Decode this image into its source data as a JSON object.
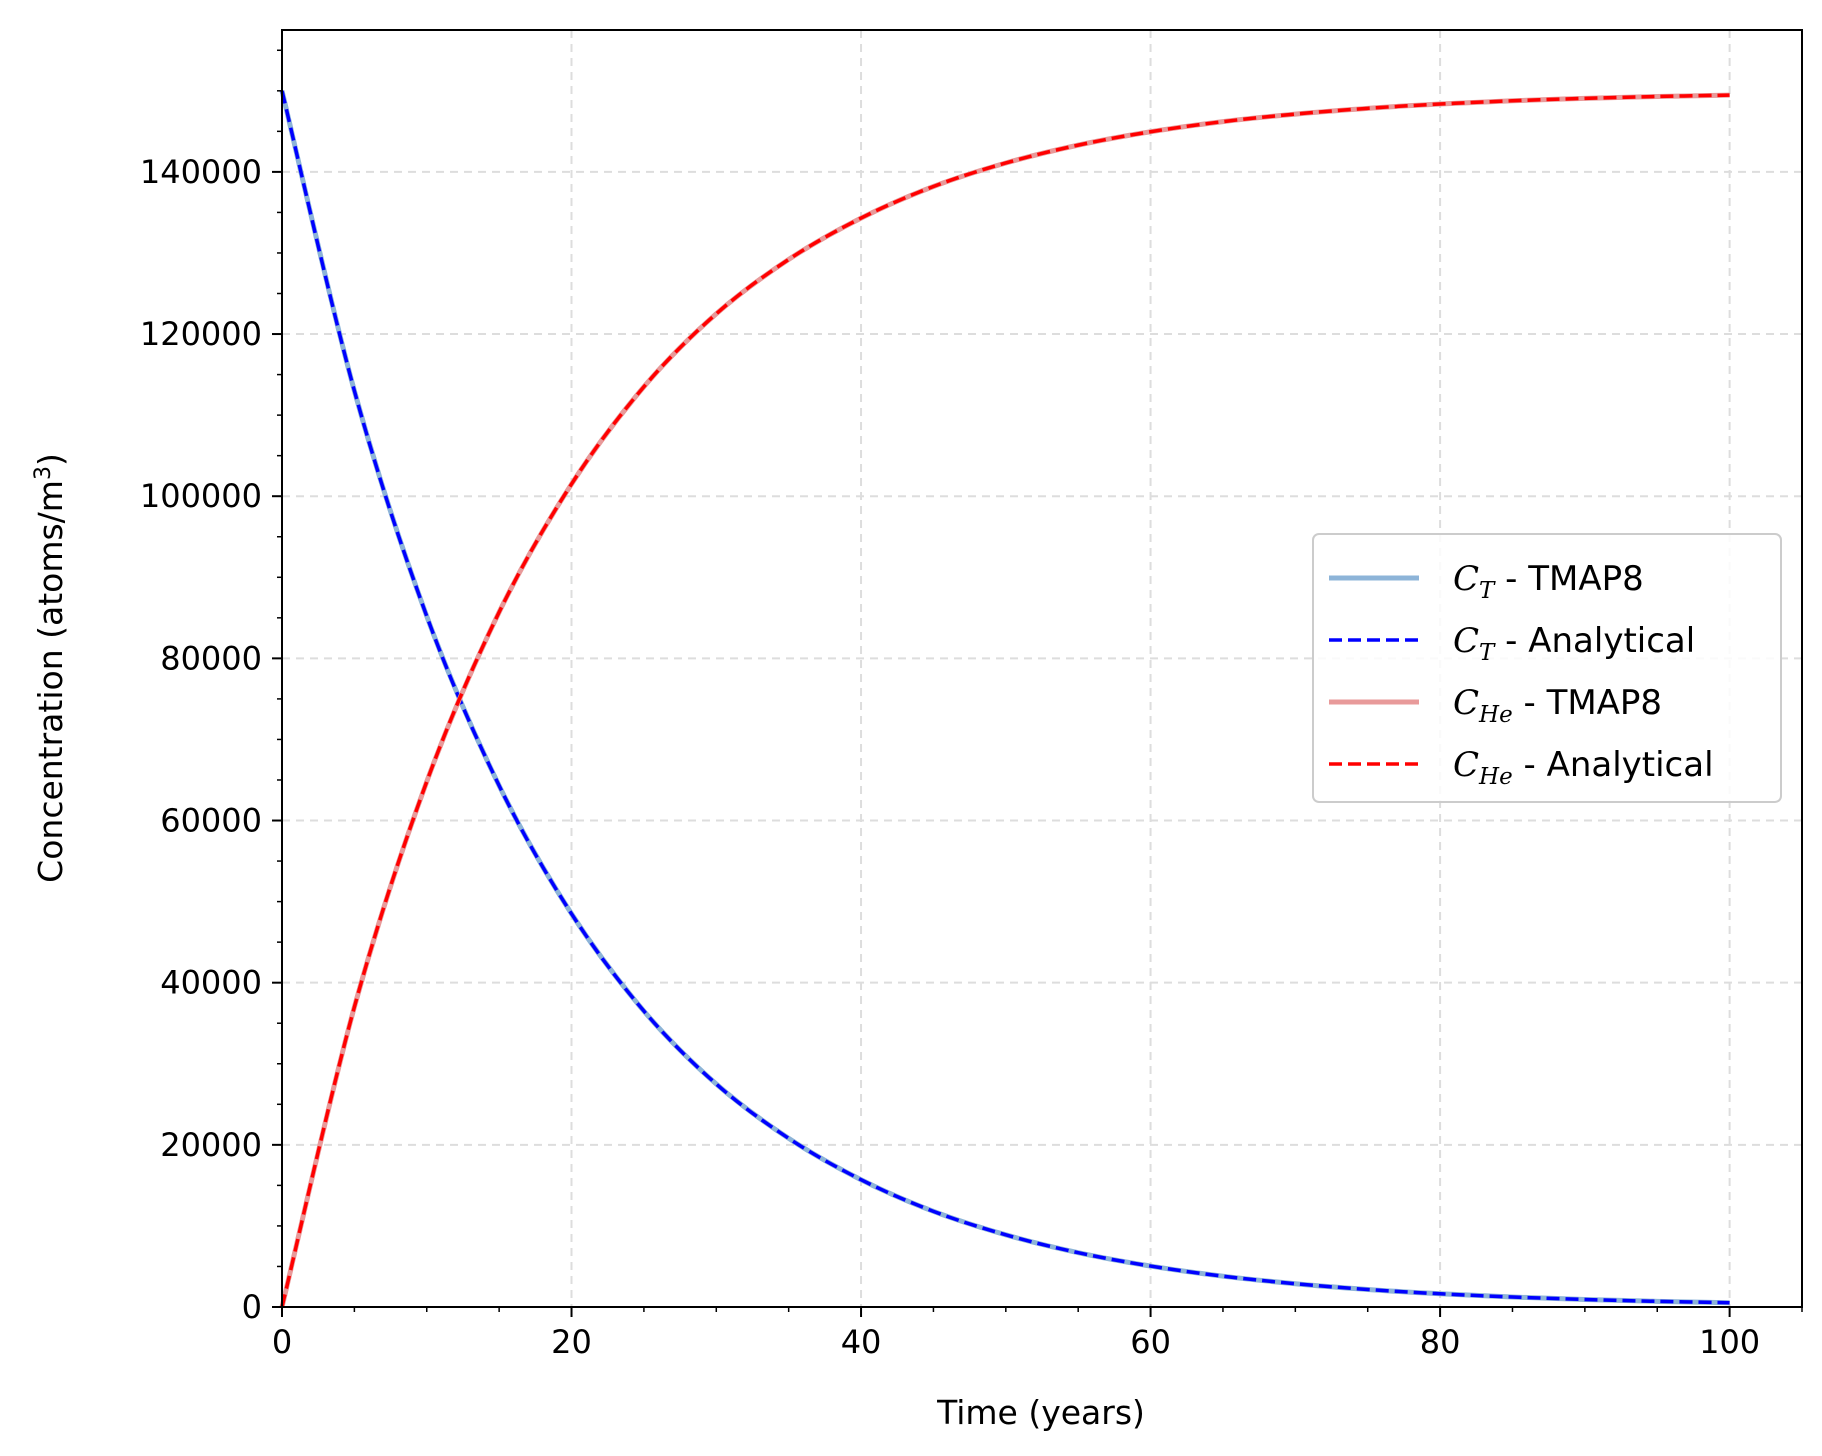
{
  "chart_data": {
    "type": "line",
    "xlabel": "Time (years)",
    "ylabel_main": "Concentration (atoms/m",
    "ylabel_sup": "3",
    "ylabel_close": ")",
    "xlim": [
      0,
      105
    ],
    "ylim": [
      0,
      157500
    ],
    "x_ticks": [
      0,
      20,
      40,
      60,
      80,
      100
    ],
    "x_tick_labels": [
      "0",
      "20",
      "40",
      "60",
      "80",
      "100"
    ],
    "y_ticks": [
      0,
      20000,
      40000,
      60000,
      80000,
      100000,
      120000,
      140000
    ],
    "y_tick_labels": [
      "0",
      "20000",
      "40000",
      "60000",
      "80000",
      "100000",
      "120000",
      "140000"
    ],
    "grid": true,
    "legend_position": "center-right",
    "x": [
      0,
      5,
      10,
      15,
      20,
      25,
      30,
      35,
      40,
      45,
      50,
      55,
      60,
      65,
      70,
      75,
      80,
      85,
      90,
      95,
      100
    ],
    "series": [
      {
        "sym": "C",
        "sub": "T",
        "rest": " - TMAP8",
        "style": "solid",
        "color": "#8db4d8",
        "values": [
          150000,
          113000,
          85200,
          64300,
          48500,
          36500,
          27500,
          20800,
          15700,
          11800,
          8900,
          6700,
          5050,
          3800,
          2870,
          2160,
          1630,
          1230,
          930,
          700,
          530
        ]
      },
      {
        "sym": "C",
        "sub": "T",
        "rest": " - Analytical",
        "style": "dashed",
        "color": "#0000ff",
        "values": [
          150000,
          113000,
          85200,
          64300,
          48500,
          36500,
          27500,
          20800,
          15700,
          11800,
          8900,
          6700,
          5050,
          3800,
          2870,
          2160,
          1630,
          1230,
          930,
          700,
          530
        ]
      },
      {
        "sym": "C",
        "sub": "He",
        "rest": " - TMAP8",
        "style": "solid",
        "color": "#e89a9a",
        "values": [
          0,
          37000,
          64800,
          85700,
          101500,
          113500,
          122500,
          129200,
          134300,
          138200,
          141100,
          143300,
          144950,
          146200,
          147130,
          147840,
          148370,
          148770,
          149070,
          149300,
          149470
        ]
      },
      {
        "sym": "C",
        "sub": "He",
        "rest": " - Analytical",
        "style": "dashed",
        "color": "#ff0000",
        "values": [
          0,
          37000,
          64800,
          85700,
          101500,
          113500,
          122500,
          129200,
          134300,
          138200,
          141100,
          143300,
          144950,
          146200,
          147130,
          147840,
          148370,
          148770,
          149070,
          149300,
          149470
        ]
      }
    ]
  }
}
